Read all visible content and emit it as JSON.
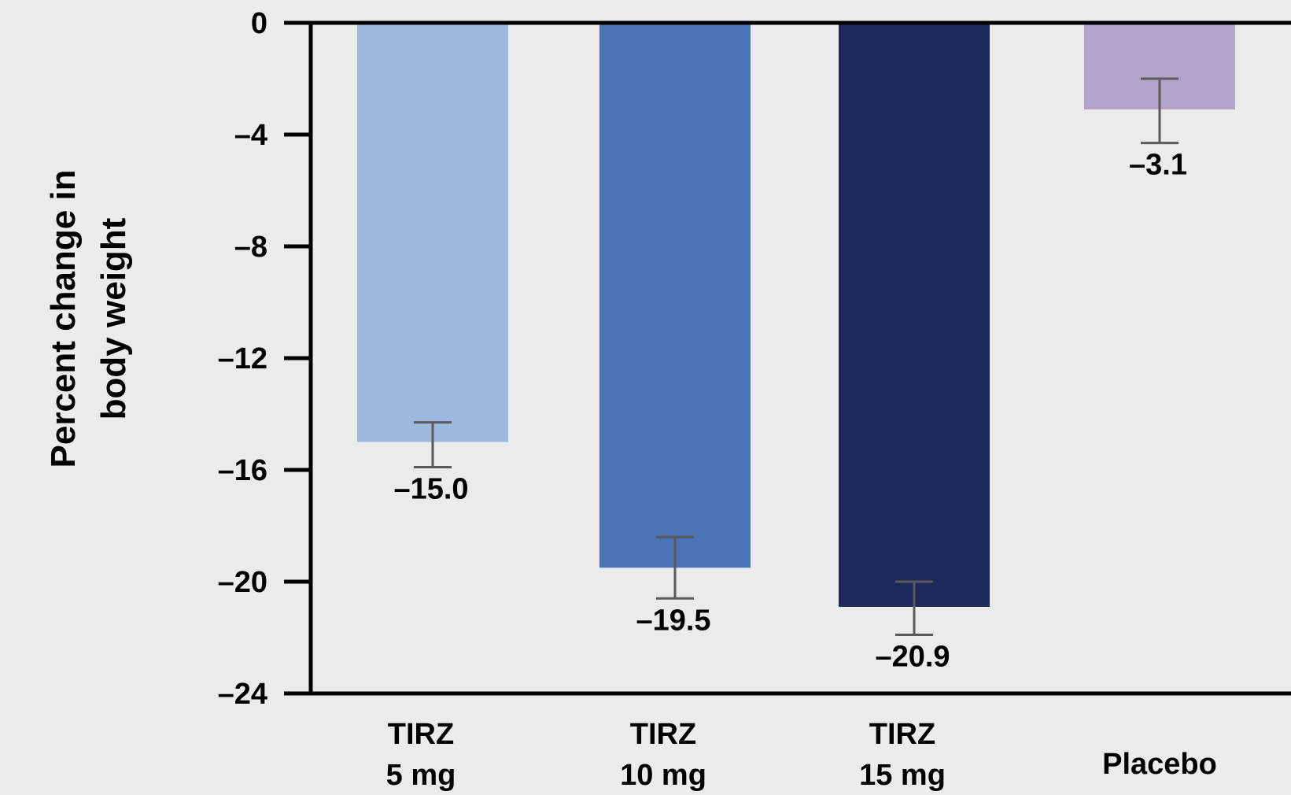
{
  "chart_data": {
    "type": "bar",
    "title": "",
    "ylabel_lines": [
      "Percent change in",
      "body weight"
    ],
    "xlabel": "",
    "ylim": [
      -24,
      0
    ],
    "yticks": [
      0,
      -4,
      -8,
      -12,
      -16,
      -20,
      -24
    ],
    "ytick_labels": [
      "0",
      "–4",
      "–8",
      "–12",
      "–16",
      "–20",
      "–24"
    ],
    "grid": false,
    "legend": "none",
    "categories": [
      {
        "lines": [
          "TIRZ",
          "5 mg"
        ]
      },
      {
        "lines": [
          "TIRZ",
          "10 mg"
        ]
      },
      {
        "lines": [
          "TIRZ",
          "15 mg"
        ]
      },
      {
        "lines": [
          "Placebo"
        ]
      }
    ],
    "values": [
      -15.0,
      -19.5,
      -20.9,
      -3.1
    ],
    "value_labels": [
      "–15.0",
      "–19.5",
      "–20.9",
      "–3.1"
    ],
    "error_bars": [
      {
        "low": -15.9,
        "high": -14.3
      },
      {
        "low": -20.6,
        "high": -18.4
      },
      {
        "low": -21.9,
        "high": -20.0
      },
      {
        "low": -4.3,
        "high": -2.0
      }
    ],
    "colors": [
      "#9fb8e0",
      "#4a72b6",
      "#1f285b",
      "#b2a3c9"
    ],
    "error_bar_color": "#5a5a5a",
    "axis_color": "#000000"
  }
}
